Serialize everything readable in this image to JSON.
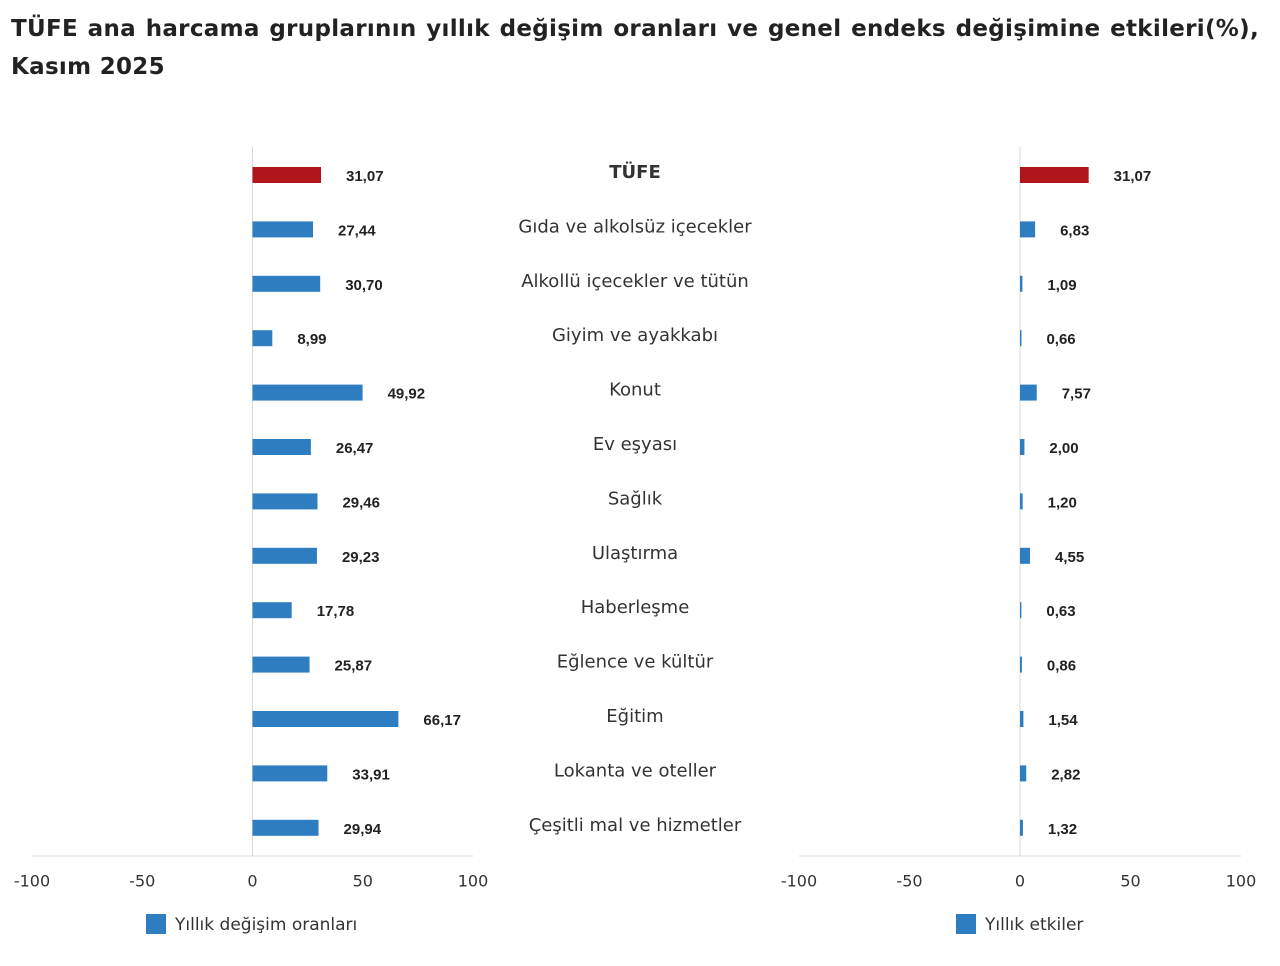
{
  "chart_data": [
    {
      "type": "bar",
      "title": "TÜFE ana harcama gruplarının yıllık değişim oranları ve genel endeks değişimine etkileri(%), Kasım 2025",
      "categories": [
        "TÜFE",
        "Gıda ve alkolsüz içecekler",
        "Alkollü içecekler ve tütün",
        "Giyim ve ayakkabı",
        "Konut",
        "Ev eşyası",
        "Sağlık",
        "Ulaştırma",
        "Haberleşme",
        "Eğlence ve kültür",
        "Eğitim",
        "Lokanta ve oteller",
        "Çeşitli mal ve hizmetler"
      ],
      "series": [
        {
          "name": "Yıllık değişim oranları",
          "color": "#2e7dc0",
          "colors": [
            "#b0151c",
            "#2e7dc0",
            "#2e7dc0",
            "#2e7dc0",
            "#2e7dc0",
            "#2e7dc0",
            "#2e7dc0",
            "#2e7dc0",
            "#2e7dc0",
            "#2e7dc0",
            "#2e7dc0",
            "#2e7dc0",
            "#2e7dc0"
          ],
          "values": [
            31.07,
            27.44,
            30.7,
            8.99,
            49.92,
            26.47,
            29.46,
            29.23,
            17.78,
            25.87,
            66.17,
            33.91,
            29.94
          ],
          "value_labels": [
            "31,07",
            "27,44",
            "30,70",
            "8,99",
            "49,92",
            "26,47",
            "29,46",
            "29,23",
            "17,78",
            "25,87",
            "66,17",
            "33,91",
            "29,94"
          ]
        }
      ],
      "xlim": [
        -100,
        100
      ],
      "xticks": [
        -100,
        -50,
        0,
        50,
        100
      ]
    },
    {
      "type": "bar",
      "series": [
        {
          "name": "Yıllık etkiler",
          "color": "#2e7dc0",
          "colors": [
            "#b0151c",
            "#2e7dc0",
            "#2e7dc0",
            "#2e7dc0",
            "#2e7dc0",
            "#2e7dc0",
            "#2e7dc0",
            "#2e7dc0",
            "#2e7dc0",
            "#2e7dc0",
            "#2e7dc0",
            "#2e7dc0",
            "#2e7dc0"
          ],
          "values": [
            31.07,
            6.83,
            1.09,
            0.66,
            7.57,
            2.0,
            1.2,
            4.55,
            0.63,
            0.86,
            1.54,
            2.82,
            1.32
          ],
          "value_labels": [
            "31,07",
            "6,83",
            "1,09",
            "0,66",
            "7,57",
            "2,00",
            "1,20",
            "4,55",
            "0,63",
            "0,86",
            "1,54",
            "2,82",
            "1,32"
          ]
        }
      ],
      "xlim": [
        -100,
        100
      ],
      "xticks": [
        -100,
        -50,
        0,
        50,
        100
      ]
    }
  ]
}
